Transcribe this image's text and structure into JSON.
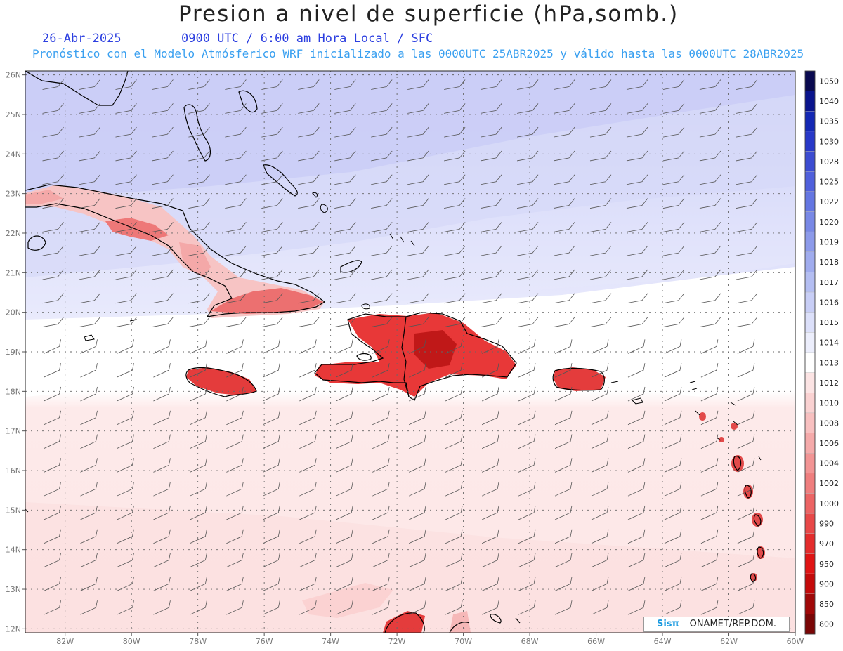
{
  "header": {
    "title": "Presion a nivel de superficie (hPa,somb.)",
    "date": "26-Abr-2025",
    "time": "0900 UTC / 6:00 am Hora Local / SFC",
    "subtitle": "Pronóstico con el Modelo Atmósferico WRF inicializado a las 0000UTC_25ABR2025 y válido hasta las  0000UTC_28ABR2025"
  },
  "map": {
    "lon_labels": [
      "82W",
      "80W",
      "78W",
      "76W",
      "74W",
      "72W",
      "70W",
      "68W",
      "66W",
      "64W",
      "62W",
      "60W"
    ],
    "lat_labels": [
      "26N",
      "25N",
      "24N",
      "23N",
      "22N",
      "21N",
      "20N",
      "19N",
      "18N",
      "17N",
      "16N",
      "15N",
      "14N",
      "13N",
      "12N"
    ],
    "lon_range": [
      -83.2,
      -60
    ],
    "lat_range": [
      11.9,
      26.1
    ]
  },
  "legend": {
    "levels": [
      "1050",
      "1040",
      "1035",
      "1030",
      "1028",
      "1025",
      "1022",
      "1020",
      "1019",
      "1018",
      "1017",
      "1016",
      "1015",
      "1014",
      "1013",
      "1012",
      "1010",
      "1008",
      "1006",
      "1004",
      "1002",
      "1000",
      "990",
      "970",
      "950",
      "900",
      "850",
      "800"
    ],
    "colors": [
      "#0a0a50",
      "#0a148c",
      "#1428b4",
      "#2838c8",
      "#3c4cd2",
      "#5060dc",
      "#6476e2",
      "#7888e6",
      "#8c9aea",
      "#a0acee",
      "#b4bef2",
      "#c8cef6",
      "#dce0fa",
      "#eceefc",
      "#ffffff",
      "#fce4e4",
      "#fad2d2",
      "#f8c0c0",
      "#f5aaaa",
      "#f29494",
      "#ef7e7e",
      "#ec6464",
      "#e84848",
      "#e42c2c",
      "#e01414",
      "#c40a0a",
      "#a00808",
      "#7a0606"
    ]
  },
  "credit": {
    "brand": "Sisπ",
    "org": "– ONAMET/REP.DOM."
  }
}
